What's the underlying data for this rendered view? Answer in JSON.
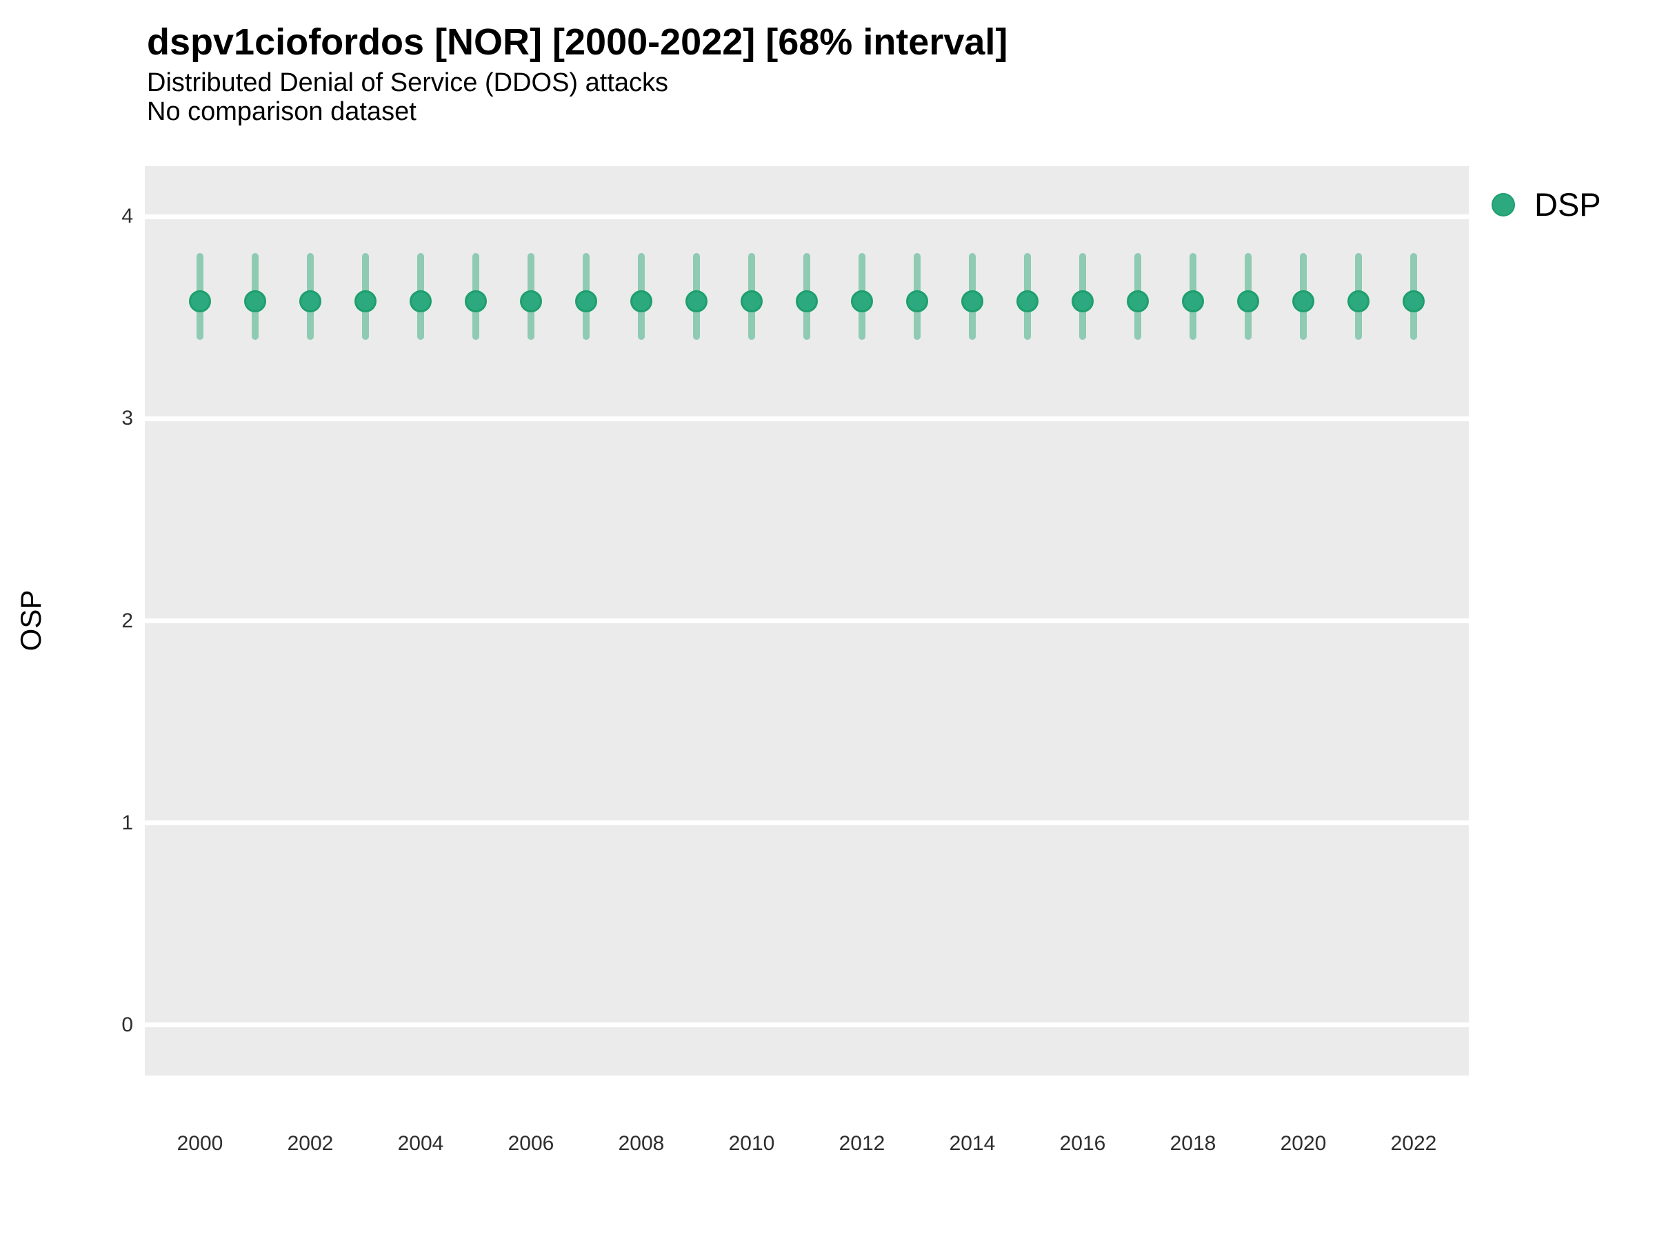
{
  "header": {
    "title": "dspv1ciofordos [NOR] [2000-2022] [68% interval]",
    "subtitle": "Distributed Denial of Service (DDOS) attacks",
    "comparison_note": "No comparison dataset"
  },
  "legend": {
    "position": "right",
    "entries": [
      {
        "label": "DSP",
        "color": "#2ca97e"
      }
    ]
  },
  "colors": {
    "point_fill": "#2ca97e",
    "point_border": "#1e9f6e",
    "errorbar": "#8ecbb2",
    "panel_background": "#ebebeb",
    "gridline": "#ffffff",
    "tick_text": "#2e2e2e",
    "title_text": "#000000"
  },
  "chart_data": {
    "type": "scatter",
    "title": "dspv1ciofordos [NOR] [2000-2022] [68% interval]",
    "subtitle": "Distributed Denial of Service (DDOS) attacks",
    "comparison_note": "No comparison dataset",
    "interval_label": "68% interval",
    "xlabel": "",
    "ylabel": "OSP",
    "grid": "horizontal-major-only",
    "legend_position": "right",
    "x": [
      2000,
      2001,
      2002,
      2003,
      2004,
      2005,
      2006,
      2007,
      2008,
      2009,
      2010,
      2011,
      2012,
      2013,
      2014,
      2015,
      2016,
      2017,
      2018,
      2019,
      2020,
      2021,
      2022
    ],
    "series": [
      {
        "name": "DSP",
        "values": [
          3.58,
          3.58,
          3.58,
          3.58,
          3.58,
          3.58,
          3.58,
          3.58,
          3.58,
          3.58,
          3.58,
          3.58,
          3.58,
          3.58,
          3.58,
          3.58,
          3.58,
          3.58,
          3.58,
          3.58,
          3.58,
          3.58,
          3.58
        ],
        "interval_low": [
          3.39,
          3.39,
          3.39,
          3.39,
          3.39,
          3.39,
          3.39,
          3.39,
          3.39,
          3.39,
          3.39,
          3.39,
          3.39,
          3.39,
          3.39,
          3.39,
          3.39,
          3.39,
          3.39,
          3.39,
          3.39,
          3.39,
          3.39
        ],
        "interval_high": [
          3.82,
          3.82,
          3.82,
          3.82,
          3.82,
          3.82,
          3.82,
          3.82,
          3.82,
          3.82,
          3.82,
          3.82,
          3.82,
          3.82,
          3.82,
          3.82,
          3.82,
          3.82,
          3.82,
          3.82,
          3.82,
          3.82,
          3.82
        ]
      }
    ],
    "ylim": [
      -0.25,
      4.25
    ],
    "yticks": [
      0,
      1,
      2,
      3,
      4
    ],
    "xticks": [
      2000,
      2002,
      2004,
      2006,
      2008,
      2010,
      2012,
      2014,
      2016,
      2018,
      2020,
      2022
    ],
    "xlim_padded": [
      1999,
      2023
    ]
  }
}
